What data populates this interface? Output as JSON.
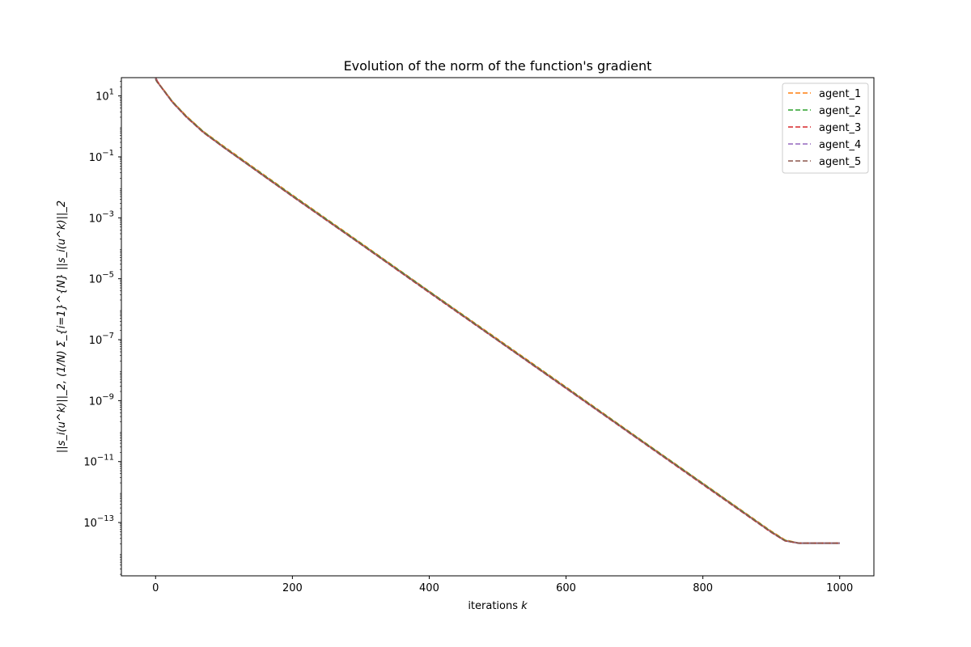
{
  "chart_data": {
    "type": "line",
    "title": "Evolution of the norm of the function's gradient",
    "xlabel": "iterations k",
    "xlabel_main": "iterations ",
    "xlabel_var": "k",
    "ylabel": "||s_i(u^k)||_2, (1/N) Σ_{i=1}^{N} ||s_i(u^k)||_2",
    "yscale": "log",
    "xlim": [
      -50,
      1050
    ],
    "ylim_log10": [
      -14.75,
      1.6
    ],
    "xticks": [
      0,
      200,
      400,
      600,
      800,
      1000
    ],
    "xtick_labels": [
      "0",
      "200",
      "400",
      "600",
      "800",
      "1000"
    ],
    "yticks_exp": [
      1,
      -1,
      -3,
      -5,
      -7,
      -9,
      -11,
      -13
    ],
    "ytick_base": "10",
    "ytick_exp_labels": [
      "1",
      "−1",
      "−3",
      "−5",
      "−7",
      "−9",
      "−11",
      "−13"
    ],
    "grid": false,
    "legend_position": "top-right",
    "series": [
      {
        "name": "agent_1",
        "color": "#ff7f0e",
        "style": "dashed",
        "x": [
          0,
          2,
          10,
          25,
          45,
          70,
          100,
          200,
          300,
          400,
          500,
          600,
          700,
          800,
          900,
          920,
          940,
          1000
        ],
        "y": [
          40.0,
          30.0,
          18.0,
          6.5,
          2.2,
          0.68,
          0.22,
          0.0056,
          0.00015,
          3.9e-06,
          1.05e-07,
          2.8e-09,
          7.3e-11,
          1.95e-12,
          5.2e-14,
          2.7e-14,
          2.1e-14,
          2.1e-14
        ]
      },
      {
        "name": "agent_2",
        "color": "#2ca02c",
        "style": "dashed",
        "x": [
          0,
          2,
          10,
          25,
          45,
          70,
          100,
          200,
          300,
          400,
          500,
          600,
          700,
          800,
          900,
          920,
          940,
          1000
        ],
        "y": [
          35.0,
          29.0,
          17.5,
          6.3,
          2.1,
          0.66,
          0.21,
          0.0054,
          0.000145,
          3.8e-06,
          1e-07,
          2.7e-09,
          7.1e-11,
          1.9e-12,
          5e-14,
          2.6e-14,
          2.1e-14,
          2.1e-14
        ]
      },
      {
        "name": "agent_3",
        "color": "#d62728",
        "style": "dashed",
        "x": [
          0,
          2,
          10,
          25,
          45,
          70,
          100,
          200,
          300,
          400,
          500,
          600,
          700,
          800,
          900,
          920,
          940,
          1000
        ],
        "y": [
          60.0,
          32.0,
          17.0,
          6.0,
          2.0,
          0.62,
          0.2,
          0.005,
          0.000135,
          3.5e-06,
          9.4e-08,
          2.5e-09,
          6.6e-11,
          1.75e-12,
          4.7e-14,
          2.5e-14,
          2.1e-14,
          2.1e-14
        ]
      },
      {
        "name": "agent_4",
        "color": "#9467bd",
        "style": "dashed",
        "x": [
          0,
          2,
          10,
          25,
          45,
          70,
          100,
          200,
          300,
          400,
          500,
          600,
          700,
          800,
          900,
          920,
          940,
          1000
        ],
        "y": [
          38.0,
          30.0,
          17.0,
          6.0,
          2.0,
          0.63,
          0.2,
          0.0051,
          0.000136,
          3.6e-06,
          9.5e-08,
          2.55e-09,
          6.7e-11,
          1.8e-12,
          4.8e-14,
          2.5e-14,
          2.1e-14,
          2.1e-14
        ]
      },
      {
        "name": "agent_5",
        "color": "#8c564b",
        "style": "dashed",
        "x": [
          0,
          2,
          10,
          25,
          45,
          70,
          100,
          200,
          300,
          400,
          500,
          600,
          700,
          800,
          900,
          920,
          940,
          1000
        ],
        "y": [
          36.0,
          29.5,
          17.2,
          6.1,
          2.05,
          0.63,
          0.2,
          0.0051,
          0.000137,
          3.6e-06,
          9.6e-08,
          2.6e-09,
          6.8e-11,
          1.8e-12,
          4.8e-14,
          2.5e-14,
          2.1e-14,
          2.1e-14
        ]
      },
      {
        "name": "",
        "color": "#7f7f7f",
        "style": "solid",
        "x": [
          0,
          2,
          10,
          25,
          45,
          70,
          100,
          200,
          300,
          400,
          500,
          600,
          700,
          800,
          900,
          920,
          940,
          1000
        ],
        "y": [
          42.0,
          30.0,
          17.3,
          6.2,
          2.1,
          0.65,
          0.205,
          0.0052,
          0.00014,
          3.7e-06,
          9.8e-08,
          2.6e-09,
          6.9e-11,
          1.85e-12,
          4.9e-14,
          2.55e-14,
          2.1e-14,
          2.1e-14
        ]
      }
    ]
  }
}
